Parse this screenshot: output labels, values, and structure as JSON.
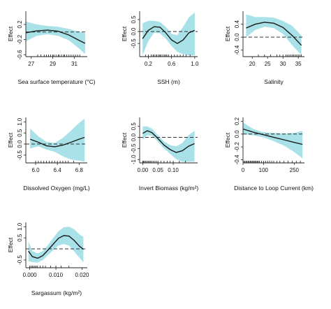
{
  "figure": {
    "colors": {
      "ribbon": "#a8e2e8",
      "curve": "#1a1a1a",
      "reference": "#333333",
      "rug": "#111111",
      "axis": "#222222"
    }
  },
  "chart_data": [
    {
      "type": "line",
      "xlabel": "Sea surface temperature (°C)",
      "ylabel": "Effect",
      "xlim": [
        26.5,
        32.2
      ],
      "ylim": [
        -0.65,
        0.55
      ],
      "x_ticks": [
        27,
        29,
        31
      ],
      "x_tick_labels": [
        "27",
        "29",
        "31"
      ],
      "y_ticks": [
        -0.6,
        -0.2,
        0.2
      ],
      "y_tick_labels": [
        "-0.6",
        "-0.2",
        "0.2"
      ],
      "reference_line": 0,
      "series": [
        {
          "x": [
            26.5,
            27.5,
            28.5,
            29.5,
            30.5,
            31.5,
            32.0
          ],
          "y": [
            -0.02,
            0.03,
            0.05,
            0.02,
            -0.08,
            -0.23,
            -0.3
          ],
          "lower": [
            -0.25,
            -0.1,
            -0.06,
            -0.1,
            -0.22,
            -0.45,
            -0.58
          ],
          "upper": [
            0.28,
            0.2,
            0.16,
            0.14,
            0.08,
            0.0,
            -0.03
          ]
        }
      ],
      "rug": [
        27.6,
        27.9,
        28.2,
        28.4,
        28.6,
        28.8,
        29.0,
        29.1,
        29.3,
        29.5,
        29.6,
        29.8,
        30.0,
        30.1,
        30.3,
        30.5,
        30.7,
        30.9,
        31.1,
        31.3,
        31.5
      ]
    },
    {
      "type": "line",
      "xlabel": "SSH (m)",
      "ylabel": "Effect",
      "xlim": [
        0.05,
        1.05
      ],
      "ylim": [
        -1.05,
        0.85
      ],
      "x_ticks": [
        0.2,
        0.6,
        1.0
      ],
      "x_tick_labels": [
        "0.2",
        "0.6",
        "1.0"
      ],
      "y_ticks": [
        -0.5,
        0.0,
        0.5
      ],
      "y_tick_labels": [
        "-0.5",
        "0.0",
        "0.5"
      ],
      "reference_line": 0,
      "series": [
        {
          "x": [
            0.1,
            0.2,
            0.3,
            0.4,
            0.5,
            0.6,
            0.7,
            0.8,
            0.9,
            1.0
          ],
          "y": [
            -0.3,
            0.05,
            0.2,
            0.18,
            -0.05,
            -0.35,
            -0.5,
            -0.35,
            -0.05,
            0.05
          ],
          "lower": [
            -1.0,
            -0.4,
            -0.05,
            -0.08,
            -0.3,
            -0.6,
            -0.85,
            -0.95,
            -1.0,
            -1.0
          ],
          "upper": [
            0.35,
            0.45,
            0.45,
            0.4,
            0.2,
            -0.1,
            -0.15,
            0.2,
            0.6,
            0.8
          ]
        }
      ],
      "rug": [
        0.15,
        0.2,
        0.25,
        0.28,
        0.3,
        0.33,
        0.35,
        0.38,
        0.4,
        0.42,
        0.45,
        0.48,
        0.5,
        0.52,
        0.55,
        0.6,
        0.65,
        0.7,
        0.75,
        0.8,
        0.85,
        0.92
      ]
    },
    {
      "type": "line",
      "xlabel": "Salinity",
      "ylabel": "Effect",
      "xlim": [
        17,
        37
      ],
      "ylim": [
        -0.6,
        0.8
      ],
      "x_ticks": [
        20,
        25,
        30,
        35
      ],
      "x_tick_labels": [
        "20",
        "25",
        "30",
        "35"
      ],
      "y_ticks": [
        -0.4,
        0.0,
        0.4
      ],
      "y_tick_labels": [
        "-0.4",
        "0.0",
        "0.4"
      ],
      "reference_line": 0,
      "series": [
        {
          "x": [
            18,
            21,
            24,
            27,
            30,
            33,
            36
          ],
          "y": [
            0.28,
            0.4,
            0.46,
            0.43,
            0.3,
            0.05,
            -0.25
          ],
          "lower": [
            0.0,
            0.22,
            0.32,
            0.28,
            0.1,
            -0.25,
            -0.55
          ],
          "upper": [
            0.7,
            0.62,
            0.62,
            0.6,
            0.5,
            0.35,
            0.05
          ]
        }
      ],
      "rug": [
        22,
        24,
        26,
        28,
        29,
        30,
        31,
        31.5,
        32,
        32.5,
        33,
        33.5,
        34,
        34.5,
        35,
        35.5,
        36
      ]
    },
    {
      "type": "line",
      "xlabel": "Dissolved Oxygen (mg/L)",
      "ylabel": "Effect",
      "xlim": [
        5.82,
        6.95
      ],
      "ylim": [
        -0.85,
        1.2
      ],
      "x_ticks": [
        6.0,
        6.4,
        6.8
      ],
      "x_tick_labels": [
        "6.0",
        "6.4",
        "6.8"
      ],
      "y_ticks": [
        -0.5,
        0.0,
        0.5,
        1.0
      ],
      "y_tick_labels": [
        "-0.5",
        "0.0",
        "0.5",
        "1.0"
      ],
      "reference_line": 0,
      "series": [
        {
          "x": [
            5.9,
            6.05,
            6.2,
            6.35,
            6.5,
            6.65,
            6.8,
            6.9
          ],
          "y": [
            0.22,
            0.08,
            -0.08,
            -0.12,
            -0.05,
            0.08,
            0.22,
            0.3
          ],
          "lower": [
            -0.2,
            -0.1,
            -0.25,
            -0.35,
            -0.55,
            -0.7,
            -0.75,
            -0.8
          ],
          "upper": [
            0.7,
            0.35,
            0.1,
            0.05,
            0.28,
            0.6,
            0.95,
            1.15
          ]
        }
      ],
      "rug": [
        6.0,
        6.05,
        6.1,
        6.15,
        6.2,
        6.25,
        6.3,
        6.35,
        6.4,
        6.45,
        6.5,
        6.55,
        6.6,
        6.7
      ]
    },
    {
      "type": "line",
      "xlabel": "Invert Biomass (kg/m²)",
      "ylabel": "Effect",
      "xlim": [
        -0.01,
        0.18
      ],
      "ylim": [
        -1.15,
        0.9
      ],
      "x_ticks": [
        0.0,
        0.05,
        0.1
      ],
      "x_tick_labels": [
        "0.00",
        "0.05",
        "0.10"
      ],
      "y_ticks": [
        -1.0,
        -0.5,
        0.0,
        0.5
      ],
      "y_tick_labels": [
        "-1.0",
        "-0.5",
        "0.0",
        "0.5"
      ],
      "reference_line": 0,
      "series": [
        {
          "x": [
            0.0,
            0.015,
            0.03,
            0.05,
            0.07,
            0.09,
            0.11,
            0.13,
            0.15,
            0.17
          ],
          "y": [
            0.18,
            0.3,
            0.22,
            -0.05,
            -0.35,
            -0.55,
            -0.68,
            -0.6,
            -0.4,
            -0.28
          ],
          "lower": [
            -0.1,
            0.1,
            0.08,
            -0.2,
            -0.5,
            -0.75,
            -0.98,
            -1.1,
            -1.1,
            -1.1
          ],
          "upper": [
            0.5,
            0.5,
            0.4,
            0.1,
            -0.18,
            -0.35,
            -0.4,
            -0.25,
            0.1,
            0.3
          ]
        }
      ],
      "rug": [
        0.0,
        0.003,
        0.006,
        0.01,
        0.014,
        0.018,
        0.022,
        0.026,
        0.03,
        0.035,
        0.04,
        0.045,
        0.05,
        0.06,
        0.07,
        0.08,
        0.09,
        0.1,
        0.12,
        0.14
      ]
    },
    {
      "type": "line",
      "xlabel": "Distance to Loop Current (km)",
      "ylabel": "Effect",
      "xlim": [
        0,
        300
      ],
      "ylim": [
        -0.45,
        0.26
      ],
      "x_ticks": [
        0,
        100,
        250
      ],
      "x_tick_labels": [
        "0",
        "100",
        "250"
      ],
      "y_ticks": [
        -0.4,
        -0.2,
        0.0,
        0.2
      ],
      "y_tick_labels": [
        "-0.4",
        "-0.2",
        "0.0",
        "0.2"
      ],
      "reference_line": 0,
      "series": [
        {
          "x": [
            0,
            50,
            100,
            150,
            200,
            250,
            290
          ],
          "y": [
            0.08,
            0.03,
            -0.01,
            -0.05,
            -0.09,
            -0.13,
            -0.16
          ],
          "lower": [
            0.0,
            -0.02,
            -0.05,
            -0.11,
            -0.18,
            -0.28,
            -0.38
          ],
          "upper": [
            0.18,
            0.08,
            0.03,
            0.02,
            0.01,
            0.02,
            0.05
          ]
        }
      ],
      "rug": [
        5,
        10,
        15,
        20,
        25,
        30,
        35,
        40,
        45,
        50,
        55,
        60,
        65,
        70,
        75,
        80,
        90,
        100,
        110,
        120,
        130,
        140,
        150,
        165,
        180,
        200,
        220,
        240,
        260,
        280
      ]
    },
    {
      "type": "line",
      "xlabel": "Sargassum (kg/m²)",
      "ylabel": "Effect",
      "xlim": [
        -0.0015,
        0.022
      ],
      "ylim": [
        -0.85,
        1.2
      ],
      "x_ticks": [
        0.0,
        0.01,
        0.02
      ],
      "x_tick_labels": [
        "0.000",
        "0.010",
        "0.020"
      ],
      "y_ticks": [
        -0.5,
        0.5,
        1.0
      ],
      "y_tick_labels": [
        "-0.5",
        "0.5",
        "1.0"
      ],
      "reference_line": 0,
      "series": [
        {
          "x": [
            -0.0005,
            0.001,
            0.003,
            0.005,
            0.007,
            0.009,
            0.011,
            0.013,
            0.015,
            0.017,
            0.019,
            0.0205
          ],
          "y": [
            -0.1,
            -0.35,
            -0.42,
            -0.3,
            -0.05,
            0.22,
            0.48,
            0.6,
            0.58,
            0.38,
            0.12,
            -0.02
          ],
          "lower": [
            -0.55,
            -0.6,
            -0.62,
            -0.5,
            -0.28,
            -0.05,
            0.15,
            0.22,
            0.15,
            -0.12,
            -0.4,
            -0.6
          ],
          "upper": [
            0.35,
            -0.1,
            -0.2,
            -0.1,
            0.18,
            0.5,
            0.8,
            0.98,
            1.0,
            0.88,
            0.65,
            0.55
          ]
        }
      ],
      "rug": [
        0.0,
        0.0005,
        0.001,
        0.0015,
        0.002,
        0.0025,
        0.003,
        0.004,
        0.005,
        0.006,
        0.008,
        0.01,
        0.012,
        0.015
      ]
    }
  ]
}
